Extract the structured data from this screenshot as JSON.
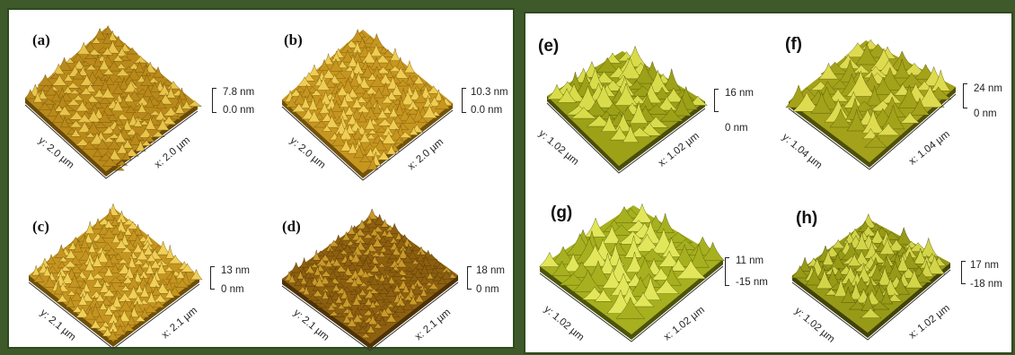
{
  "figure": {
    "left_group": {
      "panels": [
        {
          "id": "a",
          "label": "(a)",
          "y_axis": "y: 2.0 µm",
          "x_axis": "x: 2.0 µm",
          "scale_max": "7.8 nm",
          "scale_min": "0.0 nm",
          "colors": {
            "dark": "#6b4a06",
            "mid": "#b98a1a",
            "light": "#e8c44a"
          }
        },
        {
          "id": "b",
          "label": "(b)",
          "y_axis": "y: 2.0 µm",
          "x_axis": "x: 2.0 µm",
          "scale_max": "10.3 nm",
          "scale_min": "0.0 nm",
          "colors": {
            "dark": "#735207",
            "mid": "#c6961f",
            "light": "#efcd52"
          }
        },
        {
          "id": "c",
          "label": "(c)",
          "y_axis": "y: 2.1 µm",
          "x_axis": "x: 2.1 µm",
          "scale_max": "13 nm",
          "scale_min": "0 nm",
          "colors": {
            "dark": "#6e4f06",
            "mid": "#c59520",
            "light": "#f0cf56"
          }
        },
        {
          "id": "d",
          "label": "(d)",
          "y_axis": "y: 2.1 µm",
          "x_axis": "x: 2.1 µm",
          "scale_max": "18 nm",
          "scale_min": "0 nm",
          "colors": {
            "dark": "#4f3203",
            "mid": "#8d6010",
            "light": "#c99a2a"
          }
        }
      ]
    },
    "right_group": {
      "panels": [
        {
          "id": "e",
          "label": "(e)",
          "y_axis": "y: 1.02 µm",
          "x_axis": "x: 1.02 µm",
          "scale_max": "16 nm",
          "scale_min": "0 nm",
          "colors": {
            "dark": "#4a4d05",
            "mid": "#9ca117",
            "light": "#d8dc4a"
          }
        },
        {
          "id": "f",
          "label": "(f)",
          "y_axis": "y: 1.04 µm",
          "x_axis": "x: 1.04 µm",
          "scale_max": "24 nm",
          "scale_min": "0 nm",
          "colors": {
            "dark": "#4f5006",
            "mid": "#a3a21a",
            "light": "#dedb50"
          }
        },
        {
          "id": "g",
          "label": "(g)",
          "y_axis": "y: 1.02 µm",
          "x_axis": "x: 1.02 µm",
          "scale_max": "11 nm",
          "scale_min": "-15 nm",
          "colors": {
            "dark": "#4d5406",
            "mid": "#a7b01e",
            "light": "#e2e65a"
          }
        },
        {
          "id": "h",
          "label": "(h)",
          "y_axis": "y: 1.02 µm",
          "x_axis": "x: 1.02 µm",
          "scale_max": "17 nm",
          "scale_min": "-18 nm",
          "colors": {
            "dark": "#424405",
            "mid": "#979a16",
            "light": "#d3d548"
          }
        }
      ]
    },
    "frame_color": "#3e5a2a"
  }
}
